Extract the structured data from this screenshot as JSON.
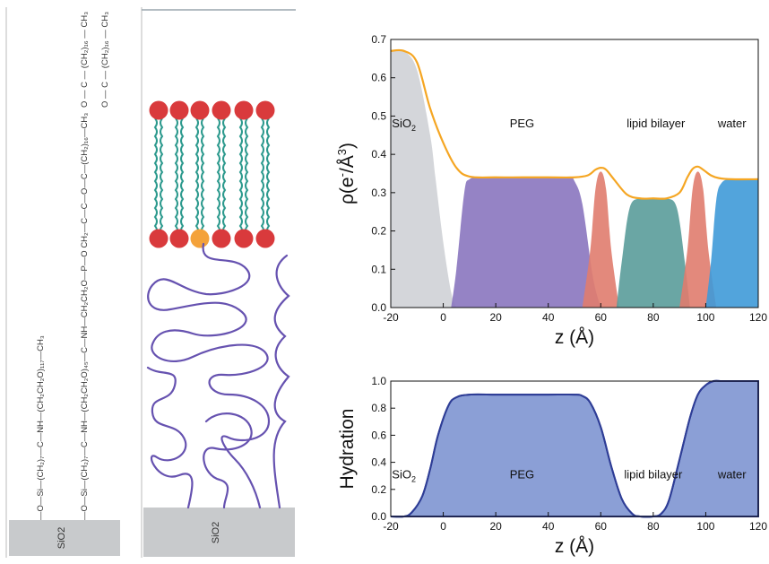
{
  "schematic": {
    "substrate_label_left": "SiO2",
    "substrate_label_right": "SiO2",
    "colors": {
      "headgroup": "#d93a3c",
      "headgroup_special": "#f4a23a",
      "lipid_tail": "#2d9a8e",
      "peg_chain": "#6652b0",
      "substrate": "#c8cacc"
    },
    "formula_lipid": [
      "O",
      "║",
      "O — C — (CH₂)₁₆ — CH₃",
      "│",
      "O — C — (CH₂)₁₆ — CH₃",
      "║",
      "O"
    ],
    "formula_peg_lipid": "—O—Si—(CH₂)₇—C—NH—(CH₂CH₂O)₄₅—C—NH—CH₂CH₂O—P—O CH₂—C—C—O—C—(CH₂)₁₆—CH₃",
    "formula_peg": "—O—Si—(CH₂)₇—C—NH—(CH₂CH₂O)₁₁₇—CH₃"
  },
  "chart_data": [
    {
      "type": "area",
      "title": "",
      "xlabel": "z (Å)",
      "ylabel_base": "ρ(e",
      "ylabel_sup1": "-",
      "ylabel_mid": "/Å",
      "ylabel_sup2": "3",
      "ylabel_end": ")",
      "xlim": [
        -20,
        120
      ],
      "ylim": [
        0,
        0.7
      ],
      "xticks": [
        -20,
        0,
        20,
        40,
        60,
        80,
        100,
        120
      ],
      "yticks": [
        0.0,
        0.1,
        0.2,
        0.3,
        0.4,
        0.5,
        0.6,
        0.7
      ],
      "ytick_labels": [
        "0.0",
        "0.1",
        "0.2",
        "0.3",
        "0.4",
        "0.5",
        "0.6",
        "0.7"
      ],
      "region_labels": [
        {
          "text": "SiO",
          "sub": "2",
          "x": -15,
          "y": 0.47
        },
        {
          "text": "PEG",
          "sub": "",
          "x": 30,
          "y": 0.47
        },
        {
          "text": "lipid bilayer",
          "sub": "",
          "x": 81,
          "y": 0.47
        },
        {
          "text": "water",
          "sub": "",
          "x": 110,
          "y": 0.47
        }
      ],
      "series": [
        {
          "color": "#cfd2d6",
          "x": [
            -20,
            -15,
            -10,
            -5,
            -3,
            0,
            3,
            5
          ],
          "values": [
            0.67,
            0.67,
            0.62,
            0.45,
            0.34,
            0.17,
            0.04,
            0.0
          ]
        },
        {
          "color": "#8a76bf",
          "x": [
            3,
            5,
            8,
            10,
            15,
            20,
            30,
            40,
            48,
            50,
            53,
            57,
            60
          ],
          "values": [
            0.0,
            0.1,
            0.3,
            0.335,
            0.34,
            0.34,
            0.34,
            0.34,
            0.34,
            0.33,
            0.27,
            0.08,
            0.0
          ]
        },
        {
          "color": "#e07c6e",
          "x": [
            53,
            56,
            58,
            60,
            62,
            64,
            67
          ],
          "values": [
            0.0,
            0.15,
            0.31,
            0.355,
            0.31,
            0.15,
            0.0
          ]
        },
        {
          "color": "#5a9c9a",
          "x": [
            66,
            68,
            71,
            75,
            80,
            85,
            89,
            92,
            94
          ],
          "values": [
            0.0,
            0.12,
            0.26,
            0.285,
            0.285,
            0.285,
            0.26,
            0.12,
            0.0
          ]
        },
        {
          "color": "#e07c6e",
          "x": [
            90,
            93,
            95,
            97,
            99,
            101,
            104
          ],
          "values": [
            0.0,
            0.15,
            0.31,
            0.355,
            0.31,
            0.15,
            0.0
          ]
        },
        {
          "color": "#3f9ad8",
          "x": [
            100,
            102,
            104,
            106,
            110,
            120
          ],
          "values": [
            0.0,
            0.12,
            0.28,
            0.325,
            0.335,
            0.335
          ]
        },
        {
          "color": "#f5a623",
          "fill": false,
          "x": [
            -20,
            -15,
            -10,
            -5,
            0,
            5,
            10,
            20,
            30,
            40,
            50,
            55,
            58,
            60,
            62,
            65,
            70,
            75,
            80,
            85,
            90,
            93,
            95,
            97,
            99,
            102,
            105,
            110,
            120
          ],
          "values": [
            0.67,
            0.67,
            0.64,
            0.52,
            0.43,
            0.365,
            0.342,
            0.34,
            0.34,
            0.34,
            0.34,
            0.345,
            0.36,
            0.365,
            0.36,
            0.335,
            0.295,
            0.285,
            0.285,
            0.285,
            0.3,
            0.34,
            0.362,
            0.368,
            0.36,
            0.345,
            0.338,
            0.335,
            0.335
          ]
        }
      ]
    },
    {
      "type": "area",
      "title": "",
      "xlabel": "z (Å)",
      "ylabel": "Hydration",
      "xlim": [
        -20,
        120
      ],
      "ylim": [
        0,
        1.0
      ],
      "xticks": [
        -20,
        0,
        20,
        40,
        60,
        80,
        100,
        120
      ],
      "yticks": [
        0.0,
        0.2,
        0.4,
        0.6,
        0.8,
        1.0
      ],
      "ytick_labels": [
        "0.0",
        "0.2",
        "0.4",
        "0.6",
        "0.8",
        "1.0"
      ],
      "region_labels": [
        {
          "text": "SiO",
          "sub": "2",
          "x": -15,
          "y": 0.28
        },
        {
          "text": "PEG",
          "sub": "",
          "x": 30,
          "y": 0.28
        },
        {
          "text": "lipid bilayer",
          "sub": "",
          "x": 80,
          "y": 0.28
        },
        {
          "text": "water",
          "sub": "",
          "x": 110,
          "y": 0.28
        }
      ],
      "series": [
        {
          "color": "#8b9fd6",
          "stroke": "#2e3d96",
          "x": [
            -20,
            -15,
            -12,
            -8,
            -5,
            -2,
            2,
            5,
            10,
            20,
            30,
            40,
            50,
            53,
            56,
            60,
            64,
            68,
            72,
            75,
            80,
            83,
            86,
            90,
            94,
            97,
            100,
            103,
            106,
            110,
            120
          ],
          "values": [
            0.0,
            0.0,
            0.03,
            0.15,
            0.35,
            0.6,
            0.82,
            0.88,
            0.9,
            0.9,
            0.9,
            0.9,
            0.9,
            0.89,
            0.84,
            0.66,
            0.37,
            0.13,
            0.02,
            0.0,
            0.0,
            0.02,
            0.12,
            0.42,
            0.73,
            0.9,
            0.97,
            1.0,
            1.0,
            1.0,
            1.0
          ]
        }
      ]
    }
  ]
}
